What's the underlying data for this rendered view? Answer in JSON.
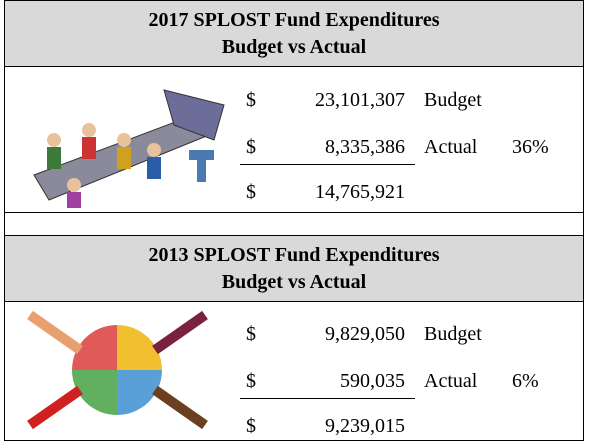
{
  "sections": [
    {
      "title": [
        "2017 SPLOST Fund Expenditures",
        "Budget vs Actual"
      ],
      "rows": [
        {
          "currency": "$",
          "amount": "23,101,307",
          "label": "Budget"
        },
        {
          "currency": "$",
          "amount": "8,335,386",
          "label": "Actual",
          "percent": "36%"
        },
        {
          "currency": "$",
          "amount": "14,765,921"
        }
      ]
    },
    {
      "title": [
        "2013 SPLOST Fund Expenditures",
        "Budget vs Actual"
      ],
      "rows": [
        {
          "currency": "$",
          "amount": "9,829,050",
          "label": "Budget"
        },
        {
          "currency": "$",
          "amount": "590,035",
          "label": "Actual",
          "percent": "6%"
        },
        {
          "currency": "$",
          "amount": "9,239,015"
        }
      ]
    }
  ]
}
